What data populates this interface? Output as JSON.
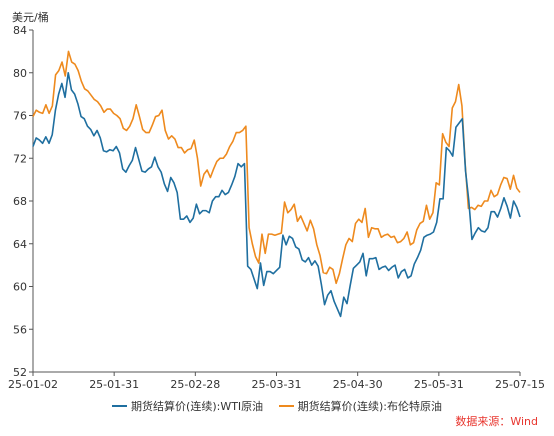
{
  "chart_data": {
    "type": "line",
    "ylabel": "美元/桶",
    "ylim": [
      52,
      84
    ],
    "yticks": [
      "52",
      "56",
      "60",
      "64",
      "68",
      "72",
      "76",
      "80",
      "84"
    ],
    "xticks": [
      "25-01-02",
      "25-01-31",
      "25-02-28",
      "25-03-31",
      "25-04-30",
      "25-05-31",
      "25-07-15"
    ],
    "grid": false,
    "legend_position": "bottom",
    "source": "数据来源：Wind",
    "series": [
      {
        "name": "期货结算价(连续):WTI原油",
        "color": "#1f6fa0",
        "values": [
          73.1,
          73.9,
          73.7,
          73.4,
          74.0,
          73.4,
          74.2,
          76.5,
          78.0,
          79.0,
          77.7,
          80.0,
          78.4,
          78.0,
          77.1,
          75.9,
          75.7,
          75.0,
          74.7,
          74.1,
          74.6,
          73.9,
          72.7,
          72.6,
          72.8,
          72.7,
          73.1,
          72.5,
          71.0,
          70.7,
          71.3,
          71.8,
          73.0,
          71.9,
          70.8,
          70.7,
          71.0,
          71.2,
          72.1,
          71.2,
          70.7,
          69.6,
          68.9,
          70.2,
          69.7,
          68.8,
          66.3,
          66.3,
          66.6,
          66.0,
          66.4,
          67.7,
          66.8,
          67.1,
          67.1,
          66.9,
          68.0,
          68.4,
          68.4,
          69.0,
          68.6,
          68.8,
          69.5,
          70.3,
          71.5,
          71.2,
          71.5,
          61.9,
          61.6,
          60.7,
          59.8,
          62.2,
          60.1,
          61.4,
          61.4,
          61.2,
          61.5,
          61.8,
          64.8,
          63.9,
          64.7,
          64.5,
          63.7,
          63.5,
          62.5,
          62.3,
          62.7,
          62.0,
          62.4,
          61.9,
          60.2,
          58.3,
          59.2,
          59.6,
          58.6,
          57.9,
          57.2,
          59.0,
          58.4,
          60.1,
          61.7,
          62.0,
          62.3,
          63.1,
          61.0,
          62.6,
          62.6,
          62.7,
          61.6,
          61.8,
          61.9,
          61.5,
          61.8,
          62.0,
          60.8,
          61.4,
          61.6,
          60.8,
          61.0,
          62.1,
          62.7,
          63.4,
          64.6,
          64.8,
          64.9,
          65.1,
          66.0,
          68.2,
          68.2,
          73.0,
          72.7,
          72.2,
          74.9,
          75.3,
          75.7,
          70.8,
          68.1,
          64.4,
          65.0,
          65.5,
          65.2,
          65.1,
          65.5,
          67.0,
          67.0,
          66.5,
          67.3,
          68.3,
          67.5,
          66.4,
          68.0,
          67.4,
          66.5
        ]
      },
      {
        "name": "期货结算价(连续):布伦特原油",
        "color": "#ee8a1e",
        "values": [
          75.9,
          76.5,
          76.3,
          76.2,
          77.0,
          76.2,
          76.9,
          79.8,
          80.2,
          81.0,
          79.7,
          82.0,
          81.0,
          80.8,
          80.2,
          79.2,
          78.5,
          78.3,
          77.9,
          77.5,
          77.3,
          76.9,
          76.3,
          76.6,
          76.6,
          76.2,
          76.0,
          75.7,
          74.8,
          74.6,
          75.0,
          75.7,
          77.0,
          75.9,
          74.7,
          74.4,
          74.4,
          75.1,
          75.9,
          76.0,
          76.5,
          74.6,
          73.8,
          74.1,
          73.8,
          73.0,
          73.0,
          72.5,
          72.8,
          72.9,
          73.7,
          72.0,
          69.4,
          70.5,
          70.9,
          70.2,
          71.0,
          71.7,
          72.0,
          72.0,
          72.4,
          73.1,
          73.6,
          74.4,
          74.4,
          74.6,
          75.0,
          65.5,
          64.0,
          62.8,
          62.2,
          64.9,
          63.1,
          64.9,
          64.9,
          64.8,
          64.9,
          65.0,
          67.9,
          66.9,
          67.2,
          67.7,
          66.1,
          66.6,
          65.9,
          65.2,
          66.2,
          65.4,
          63.9,
          62.9,
          61.3,
          61.2,
          61.8,
          61.6,
          60.3,
          61.2,
          62.6,
          63.9,
          64.5,
          64.2,
          65.9,
          66.3,
          66.0,
          67.3,
          64.6,
          65.5,
          65.4,
          65.4,
          64.6,
          64.8,
          64.9,
          64.6,
          64.7,
          64.1,
          64.2,
          64.5,
          65.1,
          63.9,
          64.1,
          65.3,
          65.9,
          66.1,
          67.6,
          66.3,
          66.9,
          69.7,
          69.5,
          74.3,
          73.5,
          73.1,
          76.7,
          77.3,
          78.9,
          76.9,
          71.5,
          67.3,
          67.4,
          67.2,
          67.6,
          67.5,
          68.0,
          68.0,
          69.0,
          68.4,
          68.6,
          69.5,
          70.2,
          70.1,
          69.1,
          70.4,
          69.2,
          68.8
        ]
      }
    ]
  }
}
